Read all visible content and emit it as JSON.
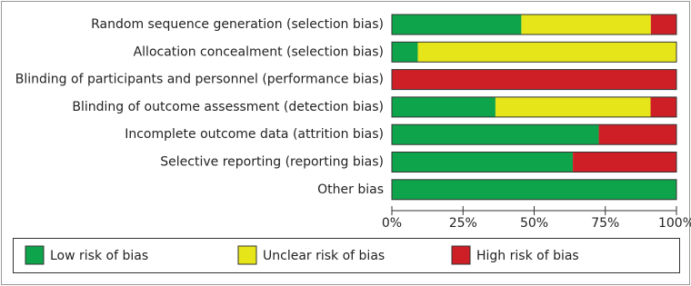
{
  "chart_data": {
    "type": "stacked-barh",
    "categories": [
      "Random sequence generation (selection bias)",
      "Allocation concealment (selection bias)",
      "Blinding of participants and personnel (performance bias)",
      "Blinding of outcome assessment (detection bias)",
      "Incomplete outcome data (attrition bias)",
      "Selective reporting (reporting bias)",
      "Other bias"
    ],
    "series": [
      {
        "name": "Low risk of bias",
        "color": "#0ea44b",
        "values": [
          45.5,
          9.1,
          0,
          36.4,
          72.7,
          63.6,
          100
        ]
      },
      {
        "name": "Unclear risk of bias",
        "color": "#e5e51a",
        "values": [
          45.5,
          90.9,
          0,
          54.5,
          0,
          0,
          0
        ]
      },
      {
        "name": "High risk of bias",
        "color": "#cf1f26",
        "values": [
          9.1,
          0,
          100,
          9.1,
          27.3,
          36.4,
          0
        ]
      }
    ],
    "xlim": [
      0,
      100
    ],
    "xticks": [
      {
        "value": 0,
        "label": "0%"
      },
      {
        "value": 25,
        "label": "25%"
      },
      {
        "value": 50,
        "label": "50%"
      },
      {
        "value": 75,
        "label": "75%"
      },
      {
        "value": 100,
        "label": "100%"
      }
    ]
  }
}
